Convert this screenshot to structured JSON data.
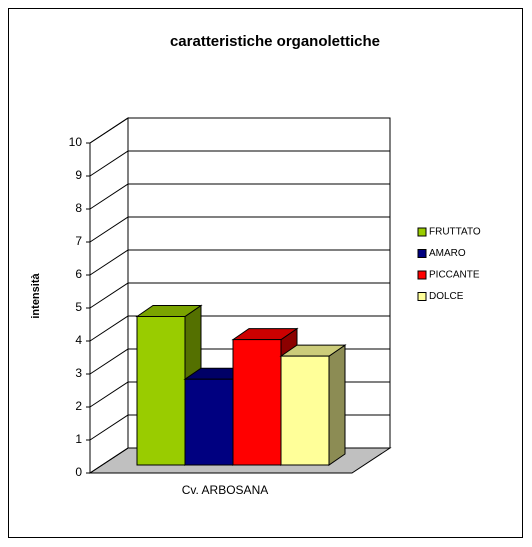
{
  "chart_data": {
    "type": "bar3d",
    "title": "caratteristiche organolettiche",
    "y_label": "intensità",
    "categories": [
      "Cv. ARBOSANA"
    ],
    "series": [
      {
        "name": "FRUTTATO",
        "color": "#99cc00",
        "values": [
          4.5
        ]
      },
      {
        "name": "AMARO",
        "color": "#000080",
        "values": [
          2.6
        ]
      },
      {
        "name": "PICCANTE",
        "color": "#ff0000",
        "values": [
          3.8
        ]
      },
      {
        "name": "DOLCE",
        "color": "#ffff99",
        "values": [
          3.3
        ]
      }
    ],
    "ylim": [
      0,
      10
    ],
    "yticks": [
      0,
      1,
      2,
      3,
      4,
      5,
      6,
      7,
      8,
      9,
      10
    ],
    "grid": true,
    "legend": "right"
  }
}
